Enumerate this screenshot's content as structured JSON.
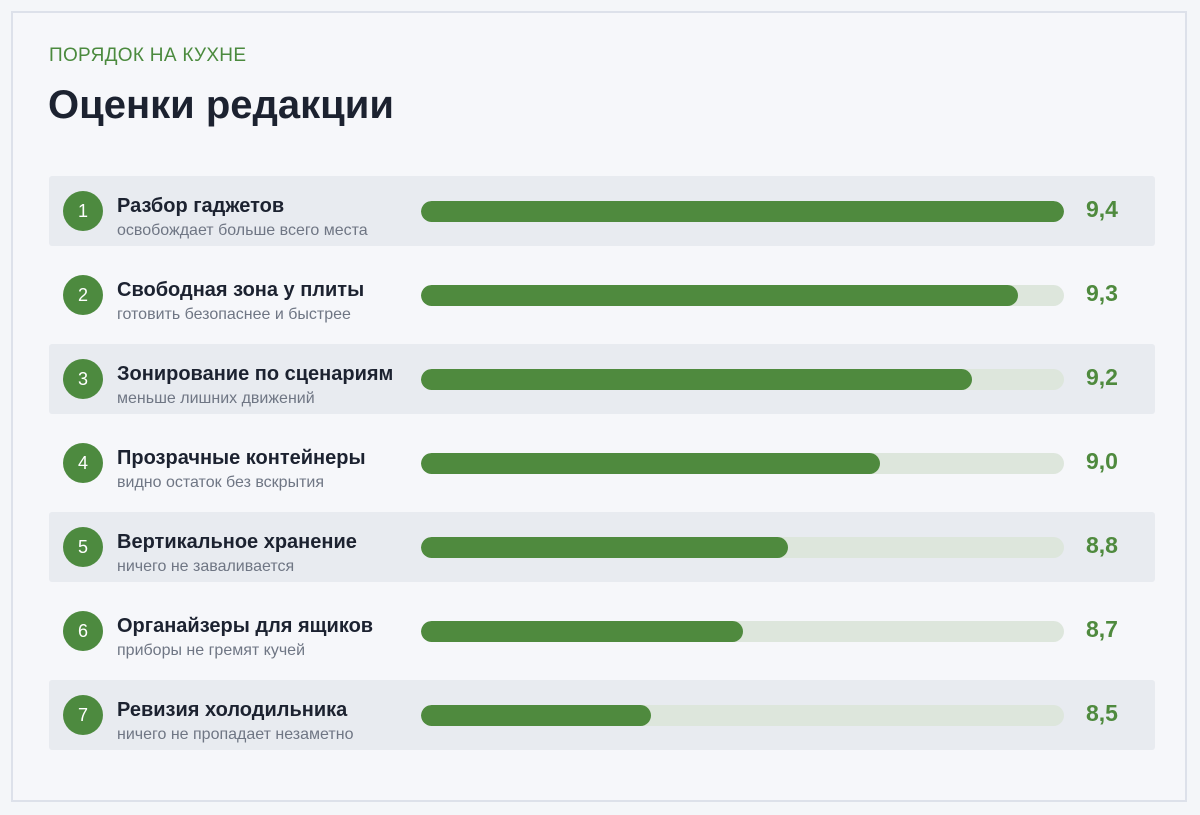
{
  "header": {
    "kicker": "ПОРЯДОК НА КУХНЕ",
    "title": "Оценки редакции"
  },
  "colors": {
    "accent": "#4f8a3e",
    "track": "#dde6dc",
    "row_shade": "#e8ebf0"
  },
  "chart_data": {
    "type": "bar",
    "orientation": "horizontal",
    "title": "Оценки редакции",
    "xlim": [
      8,
      9.4
    ],
    "items": [
      {
        "rank": "1",
        "name": "Разбор гаджетов",
        "desc": "освобождает больше всего места",
        "value": 9.4,
        "value_label": "9,4"
      },
      {
        "rank": "2",
        "name": "Свободная зона у плиты",
        "desc": "готовить безопаснее и быстрее",
        "value": 9.3,
        "value_label": "9,3"
      },
      {
        "rank": "3",
        "name": "Зонирование по сценариям",
        "desc": "меньше лишних движений",
        "value": 9.2,
        "value_label": "9,2"
      },
      {
        "rank": "4",
        "name": "Прозрачные контейнеры",
        "desc": "видно остаток без вскрытия",
        "value": 9.0,
        "value_label": "9,0"
      },
      {
        "rank": "5",
        "name": "Вертикальное хранение",
        "desc": "ничего не заваливается",
        "value": 8.8,
        "value_label": "8,8"
      },
      {
        "rank": "6",
        "name": "Органайзеры для ящиков",
        "desc": "приборы не гремят кучей",
        "value": 8.7,
        "value_label": "8,7"
      },
      {
        "rank": "7",
        "name": "Ревизия холодильника",
        "desc": "ничего не пропадает незаметно",
        "value": 8.5,
        "value_label": "8,5"
      }
    ]
  }
}
